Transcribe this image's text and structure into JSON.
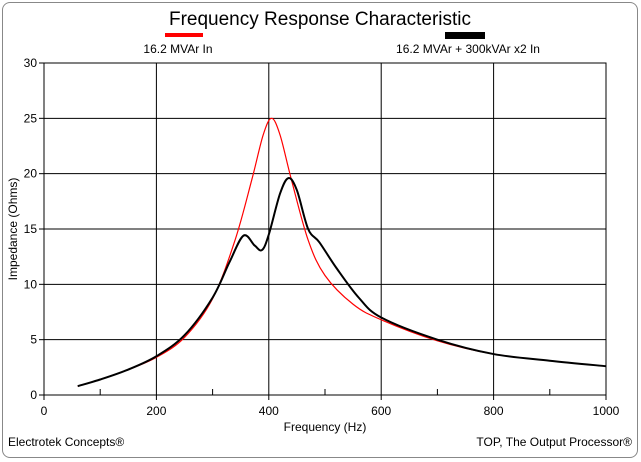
{
  "chart_data": {
    "type": "line",
    "title": "Frequency Response Characteristic",
    "xlabel": "Frequency (Hz)",
    "ylabel": "Impedance (Ohms)",
    "xlim": [
      0,
      1000
    ],
    "ylim": [
      0,
      30
    ],
    "xticks": [
      0,
      200,
      400,
      600,
      800,
      1000
    ],
    "yticks": [
      0,
      5,
      10,
      15,
      20,
      25,
      30
    ],
    "grid": true,
    "legend_placement": "top",
    "series": [
      {
        "name": "16.2 MVAr In",
        "color": "#ff0000",
        "x": [
          60,
          100,
          150,
          200,
          250,
          300,
          340,
          370,
          390,
          405,
          420,
          440,
          470,
          500,
          550,
          600,
          700,
          800,
          900,
          1000
        ],
        "y": [
          0.8,
          1.4,
          2.3,
          3.4,
          5.2,
          8.7,
          14,
          19.5,
          23.5,
          25,
          23.5,
          19.5,
          14,
          10.8,
          8.2,
          6.8,
          4.9,
          3.7,
          3.1,
          2.6
        ]
      },
      {
        "name": "16.2 MVAr + 300kVAr x2 In",
        "color": "#000000",
        "x": [
          60,
          100,
          150,
          200,
          250,
          300,
          330,
          355,
          375,
          388,
          400,
          420,
          435,
          450,
          470,
          490,
          520,
          560,
          600,
          700,
          800,
          900,
          1000
        ],
        "y": [
          0.8,
          1.4,
          2.3,
          3.5,
          5.4,
          8.8,
          12,
          14.4,
          13.5,
          13.1,
          14.5,
          18.2,
          19.6,
          18.5,
          15,
          13.8,
          11.5,
          8.8,
          7.0,
          5.0,
          3.7,
          3.1,
          2.6
        ]
      }
    ]
  },
  "footer": {
    "left": "Electrotek Concepts®",
    "right": "TOP, The Output Processor®"
  }
}
